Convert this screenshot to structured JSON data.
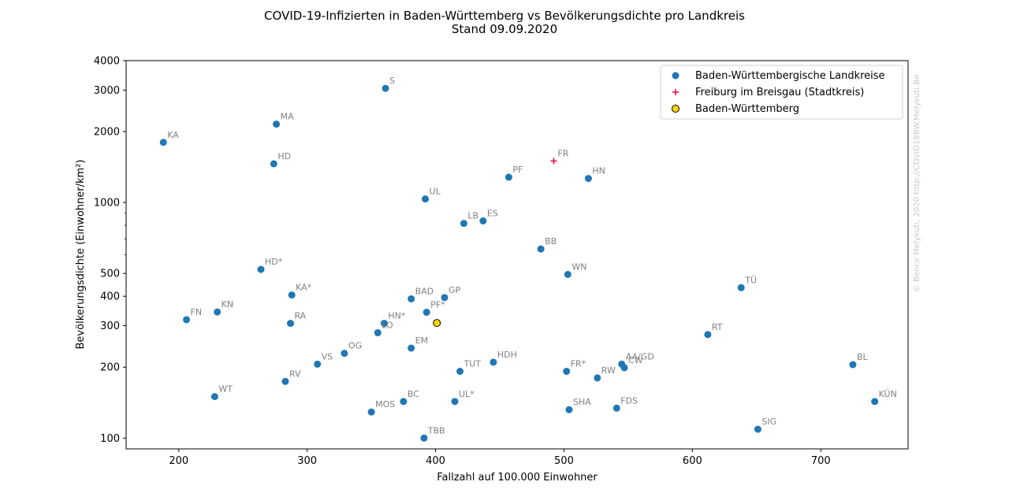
{
  "chart_data": {
    "type": "scatter",
    "title": "COVID-19-Infizierten in Baden-Württemberg vs Bevölkerungsdichte pro Landkreis",
    "subtitle": "Stand 09.09.2020",
    "xlabel": "Fallzahl auf 100.000 Einwohner",
    "ylabel": "Bevölkerungsdichte (Einwohner/km²)",
    "xlim": [
      159,
      768
    ],
    "ylim": [
      90,
      4000
    ],
    "yscale": "log",
    "x_ticks": [
      200,
      300,
      400,
      500,
      600,
      700
    ],
    "y_ticks": [
      100,
      200,
      300,
      400,
      500,
      1000,
      2000,
      3000,
      4000
    ],
    "grid": false,
    "legend_position": "top-right",
    "copyright": "© Bence Melykuti, 2020  http://COVID19BW.Melykuti.Be",
    "series": [
      {
        "name": "Baden-Württembergische Landkreise",
        "color": "#1f77b4",
        "marker": "circle",
        "points": [
          {
            "label": "S",
            "x": 361,
            "y": 3050
          },
          {
            "label": "MA",
            "x": 276,
            "y": 2150
          },
          {
            "label": "KA",
            "x": 188,
            "y": 1800
          },
          {
            "label": "HD",
            "x": 274,
            "y": 1460
          },
          {
            "label": "PF",
            "x": 457,
            "y": 1280
          },
          {
            "label": "HN",
            "x": 519,
            "y": 1265
          },
          {
            "label": "UL",
            "x": 392,
            "y": 1035
          },
          {
            "label": "LB",
            "x": 422,
            "y": 815
          },
          {
            "label": "ES",
            "x": 437,
            "y": 835
          },
          {
            "label": "BB",
            "x": 482,
            "y": 635
          },
          {
            "label": "WN",
            "x": 503,
            "y": 495
          },
          {
            "label": "HD*",
            "x": 264,
            "y": 520
          },
          {
            "label": "TÜ",
            "x": 638,
            "y": 435
          },
          {
            "label": "KA*",
            "x": 288,
            "y": 405
          },
          {
            "label": "BAD",
            "x": 381,
            "y": 390
          },
          {
            "label": "GP",
            "x": 407,
            "y": 395
          },
          {
            "label": "PF*",
            "x": 393,
            "y": 342
          },
          {
            "label": "KN",
            "x": 230,
            "y": 343
          },
          {
            "label": "FN",
            "x": 206,
            "y": 318
          },
          {
            "label": "RA",
            "x": 287,
            "y": 307
          },
          {
            "label": "HN*",
            "x": 360,
            "y": 307
          },
          {
            "label": "LO",
            "x": 355,
            "y": 280
          },
          {
            "label": "RT",
            "x": 612,
            "y": 275
          },
          {
            "label": "EM",
            "x": 381,
            "y": 241
          },
          {
            "label": "OG",
            "x": 329,
            "y": 229
          },
          {
            "label": "HDH",
            "x": 445,
            "y": 210
          },
          {
            "label": "VS",
            "x": 308,
            "y": 206
          },
          {
            "label": "AA/GD",
            "x": 545,
            "y": 206
          },
          {
            "label": "CW",
            "x": 547,
            "y": 199
          },
          {
            "label": "BL",
            "x": 725,
            "y": 205
          },
          {
            "label": "TUT",
            "x": 419,
            "y": 192
          },
          {
            "label": "FR*",
            "x": 502,
            "y": 192
          },
          {
            "label": "RW",
            "x": 526,
            "y": 180
          },
          {
            "label": "RV",
            "x": 283,
            "y": 174
          },
          {
            "label": "WT",
            "x": 228,
            "y": 150
          },
          {
            "label": "BC",
            "x": 375,
            "y": 143
          },
          {
            "label": "UL*",
            "x": 415,
            "y": 143
          },
          {
            "label": "KÜN",
            "x": 742,
            "y": 143
          },
          {
            "label": "SHA",
            "x": 504,
            "y": 132
          },
          {
            "label": "FDS",
            "x": 541,
            "y": 134
          },
          {
            "label": "MOS",
            "x": 350,
            "y": 129
          },
          {
            "label": "SIG",
            "x": 651,
            "y": 109
          },
          {
            "label": "TBB",
            "x": 391,
            "y": 100
          }
        ]
      },
      {
        "name": "Freiburg im Breisgau (Stadtkreis)",
        "color": "#dc143c",
        "marker": "plus",
        "points": [
          {
            "label": "FR",
            "x": 492,
            "y": 1500
          }
        ]
      },
      {
        "name": "Baden-Württemberg",
        "color": "#ffd700",
        "marker": "circle-outlined",
        "points": [
          {
            "label": "",
            "x": 401,
            "y": 308
          }
        ]
      }
    ]
  }
}
